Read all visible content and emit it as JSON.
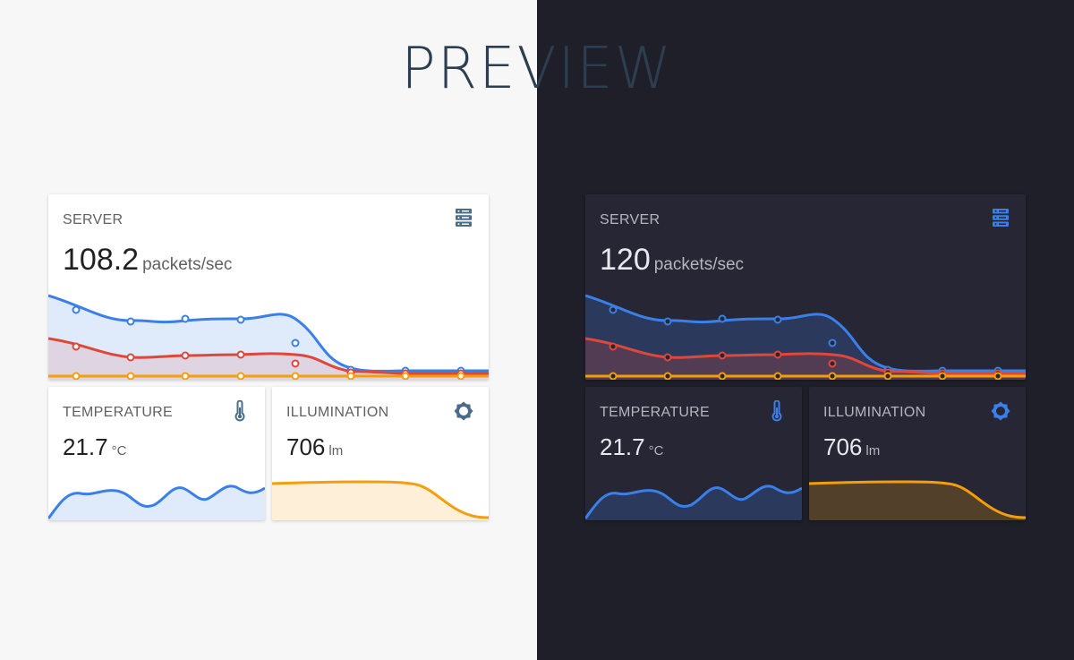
{
  "header": {
    "title": "PREVIEW"
  },
  "themes": [
    {
      "name": "light",
      "server": {
        "label": "SERVER",
        "value": "108.2",
        "unit": "packets/sec",
        "icon": "server-icon"
      },
      "temperature": {
        "label": "TEMPERATURE",
        "value": "21.7",
        "unit": "°C",
        "icon": "thermometer-icon"
      },
      "illumination": {
        "label": "ILLUMINATION",
        "value": "706",
        "unit": "lm",
        "icon": "brightness-icon"
      }
    },
    {
      "name": "dark",
      "server": {
        "label": "SERVER",
        "value": "120",
        "unit": "packets/sec",
        "icon": "server-icon"
      },
      "temperature": {
        "label": "TEMPERATURE",
        "value": "21.7",
        "unit": "°C",
        "icon": "thermometer-icon"
      },
      "illumination": {
        "label": "ILLUMINATION",
        "value": "706",
        "unit": "lm",
        "icon": "brightness-icon"
      }
    }
  ],
  "colors": {
    "blue": "#3b7fe8",
    "red": "#e0473a",
    "orange": "#f59e0b",
    "icon_light": "#4a6b8a",
    "icon_dark": "#3b7fe8"
  }
}
